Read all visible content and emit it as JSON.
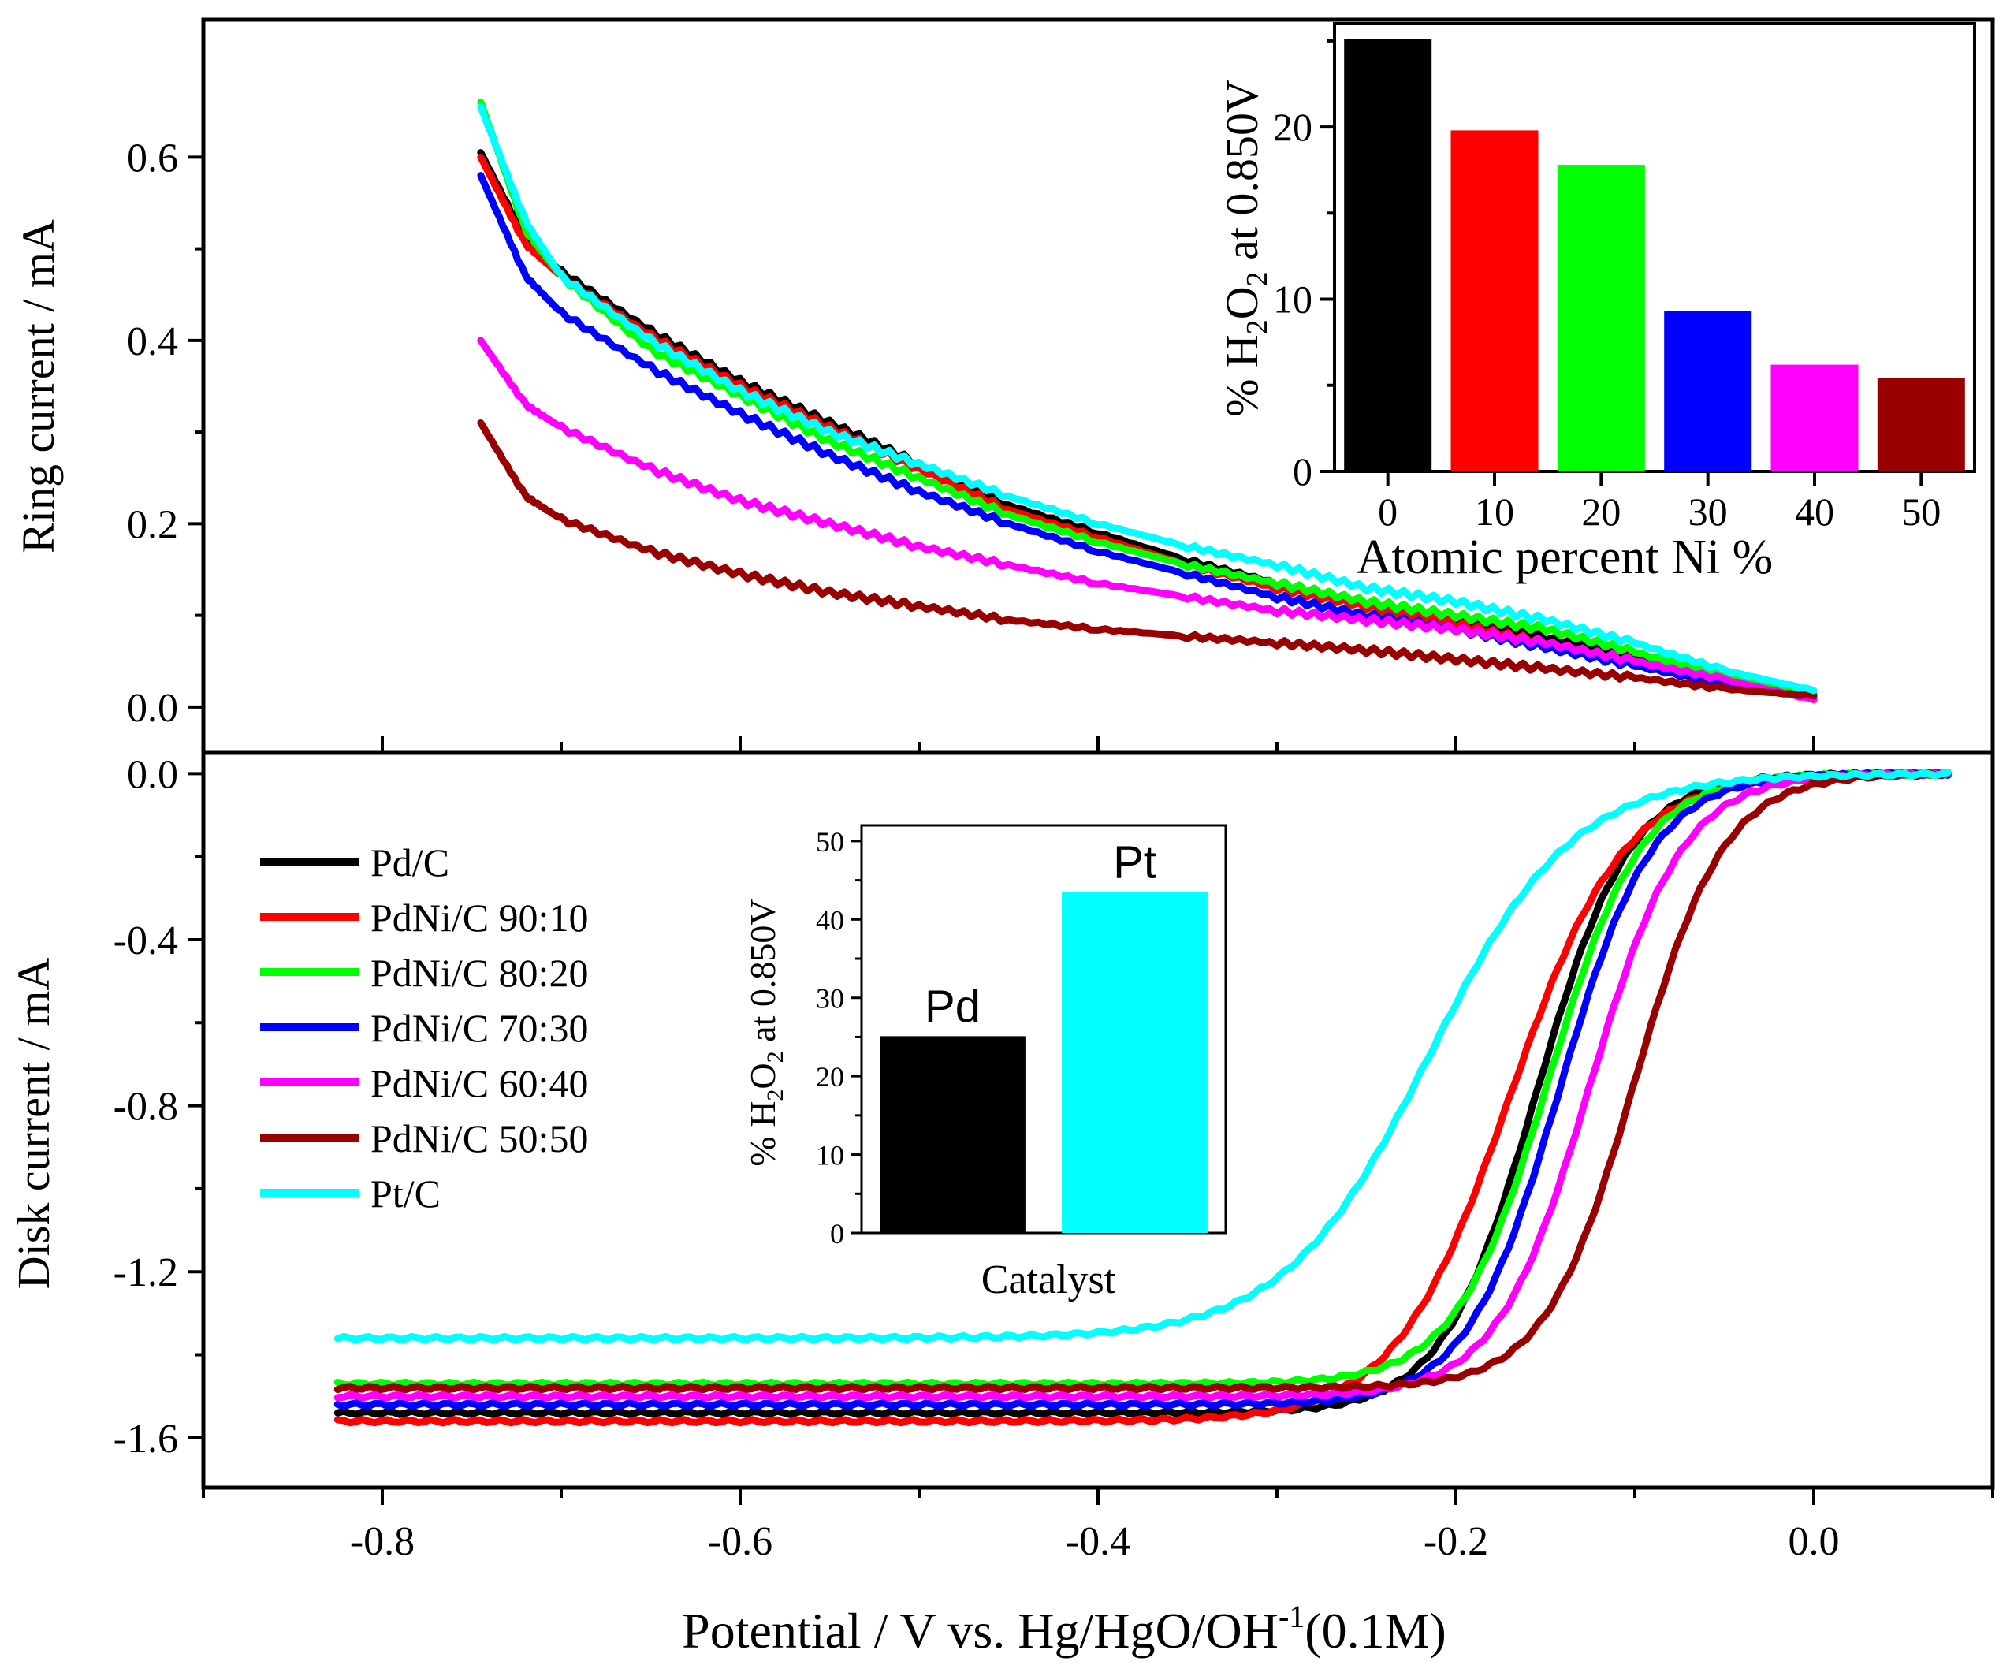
{
  "figure": {
    "x_label_main": "Potential / V vs. Hg/HgO/OH",
    "x_label_sup": "-1",
    "x_label_tail": "(0.1M)"
  },
  "chart_data": [
    {
      "id": "ring",
      "type": "line",
      "title": "",
      "xlabel": "Potential / V vs. Hg/HgO/OH-1(0.1M)",
      "ylabel": "Ring current / mA",
      "xlim": [
        -0.9,
        0.1
      ],
      "ylim": [
        -0.05,
        0.75
      ],
      "y_ticks": [
        "0.0",
        "0.2",
        "0.4",
        "0.6"
      ],
      "y_tick_values": [
        0.0,
        0.2,
        0.4,
        0.6
      ],
      "x": [
        -0.745,
        -0.72,
        -0.7,
        -0.65,
        -0.6,
        -0.55,
        -0.5,
        -0.45,
        -0.4,
        -0.35,
        -0.3,
        -0.25,
        -0.2,
        -0.15,
        -0.1,
        -0.05,
        0.0
      ],
      "series": [
        {
          "name": "Pd/C",
          "color": "#000000",
          "values": [
            0.605,
            0.51,
            0.475,
            0.41,
            0.355,
            0.31,
            0.265,
            0.22,
            0.19,
            0.16,
            0.135,
            0.115,
            0.095,
            0.075,
            0.055,
            0.03,
            0.013
          ]
        },
        {
          "name": "PdNi/C 90:10",
          "color": "#ff0000",
          "values": [
            0.6,
            0.505,
            0.47,
            0.405,
            0.35,
            0.305,
            0.26,
            0.215,
            0.185,
            0.155,
            0.13,
            0.11,
            0.09,
            0.07,
            0.05,
            0.028,
            0.012
          ]
        },
        {
          "name": "PdNi/C 80:20",
          "color": "#00ff00",
          "values": [
            0.66,
            0.52,
            0.47,
            0.39,
            0.34,
            0.29,
            0.25,
            0.21,
            0.18,
            0.155,
            0.135,
            0.115,
            0.1,
            0.085,
            0.06,
            0.033,
            0.01
          ]
        },
        {
          "name": "PdNi/C 70:30",
          "color": "#0000ff",
          "values": [
            0.58,
            0.47,
            0.43,
            0.37,
            0.32,
            0.275,
            0.235,
            0.2,
            0.17,
            0.145,
            0.12,
            0.1,
            0.085,
            0.065,
            0.045,
            0.025,
            0.01
          ]
        },
        {
          "name": "PdNi/C 60:40",
          "color": "#ff00ff",
          "values": [
            0.4,
            0.33,
            0.305,
            0.26,
            0.225,
            0.2,
            0.175,
            0.155,
            0.135,
            0.12,
            0.105,
            0.095,
            0.085,
            0.07,
            0.05,
            0.03,
            0.008
          ]
        },
        {
          "name": "PdNi/C 50:50",
          "color": "#990000",
          "values": [
            0.31,
            0.23,
            0.205,
            0.17,
            0.145,
            0.125,
            0.11,
            0.095,
            0.085,
            0.077,
            0.07,
            0.062,
            0.052,
            0.042,
            0.032,
            0.02,
            0.012
          ]
        },
        {
          "name": "Pt/C",
          "color": "#00ffff",
          "values": [
            0.655,
            0.53,
            0.47,
            0.4,
            0.345,
            0.3,
            0.265,
            0.23,
            0.2,
            0.175,
            0.155,
            0.13,
            0.115,
            0.095,
            0.07,
            0.04,
            0.018
          ]
        }
      ]
    },
    {
      "id": "disk",
      "type": "line",
      "title": "",
      "xlabel": "Potential / V vs. Hg/HgO/OH-1(0.1M)",
      "ylabel": "Disk current / mA",
      "xlim": [
        -0.9,
        0.1
      ],
      "ylim": [
        -1.72,
        0.05
      ],
      "y_ticks": [
        "0.0",
        "-0.4",
        "-0.8",
        "-1.2",
        "-1.6"
      ],
      "y_tick_values": [
        0.0,
        -0.4,
        -0.8,
        -1.2,
        -1.6
      ],
      "x_ticks": [
        "-0.8",
        "-0.6",
        "-0.4",
        "-0.2",
        "0.0"
      ],
      "x_tick_values": [
        -0.8,
        -0.6,
        -0.4,
        -0.2,
        0.0
      ],
      "x_range_data": [
        -0.825,
        0.075
      ],
      "series": [
        {
          "name": "Pd/C",
          "color": "#000000",
          "plateau": -1.54,
          "half_wave": -0.155,
          "width": 0.026
        },
        {
          "name": "PdNi/C 90:10",
          "color": "#ff0000",
          "plateau": -1.56,
          "half_wave": -0.17,
          "width": 0.032
        },
        {
          "name": "PdNi/C 80:20",
          "color": "#00ff00",
          "plateau": -1.47,
          "half_wave": -0.148,
          "width": 0.026
        },
        {
          "name": "PdNi/C 70:30",
          "color": "#0000ff",
          "plateau": -1.52,
          "half_wave": -0.142,
          "width": 0.026
        },
        {
          "name": "PdNi/C 60:40",
          "color": "#ff00ff",
          "plateau": -1.5,
          "half_wave": -0.125,
          "width": 0.026
        },
        {
          "name": "PdNi/C 50:50",
          "color": "#990000",
          "plateau": -1.48,
          "half_wave": -0.1,
          "width": 0.025
        },
        {
          "name": "Pt/C",
          "color": "#00ffff",
          "plateau": -1.36,
          "half_wave": -0.215,
          "width": 0.04
        }
      ],
      "legend": {
        "position": "left",
        "entries": [
          "Pd/C",
          "PdNi/C 90:10",
          "PdNi/C 80:20",
          "PdNi/C 70:30",
          "PdNi/C 60:40",
          "PdNi/C 50:50",
          "Pt/C"
        ]
      }
    },
    {
      "id": "inset-ni",
      "type": "bar",
      "title": "",
      "xlabel": "Atomic percent Ni %",
      "ylabel": "% H2O2 at 0.850V",
      "ylim": [
        0,
        26
      ],
      "y_ticks": [
        "0",
        "10",
        "20"
      ],
      "y_tick_values": [
        0,
        10,
        20
      ],
      "categories": [
        "0",
        "10",
        "20",
        "30",
        "40",
        "50"
      ],
      "values": [
        25.1,
        19.8,
        17.8,
        9.3,
        6.2,
        5.4
      ],
      "colors": [
        "#000000",
        "#ff0000",
        "#00ff00",
        "#0000ff",
        "#ff00ff",
        "#990000"
      ]
    },
    {
      "id": "inset-catalyst",
      "type": "bar",
      "title": "",
      "xlabel": "Catalyst",
      "ylabel": "% H2O2 at 0.850V",
      "ylim": [
        0,
        52
      ],
      "y_ticks": [
        "0",
        "10",
        "20",
        "30",
        "40",
        "50"
      ],
      "y_tick_values": [
        0,
        10,
        20,
        30,
        40,
        50
      ],
      "categories": [
        "Pd",
        "Pt"
      ],
      "values": [
        25.1,
        43.5
      ],
      "colors": [
        "#000000",
        "#00ffff"
      ]
    }
  ]
}
